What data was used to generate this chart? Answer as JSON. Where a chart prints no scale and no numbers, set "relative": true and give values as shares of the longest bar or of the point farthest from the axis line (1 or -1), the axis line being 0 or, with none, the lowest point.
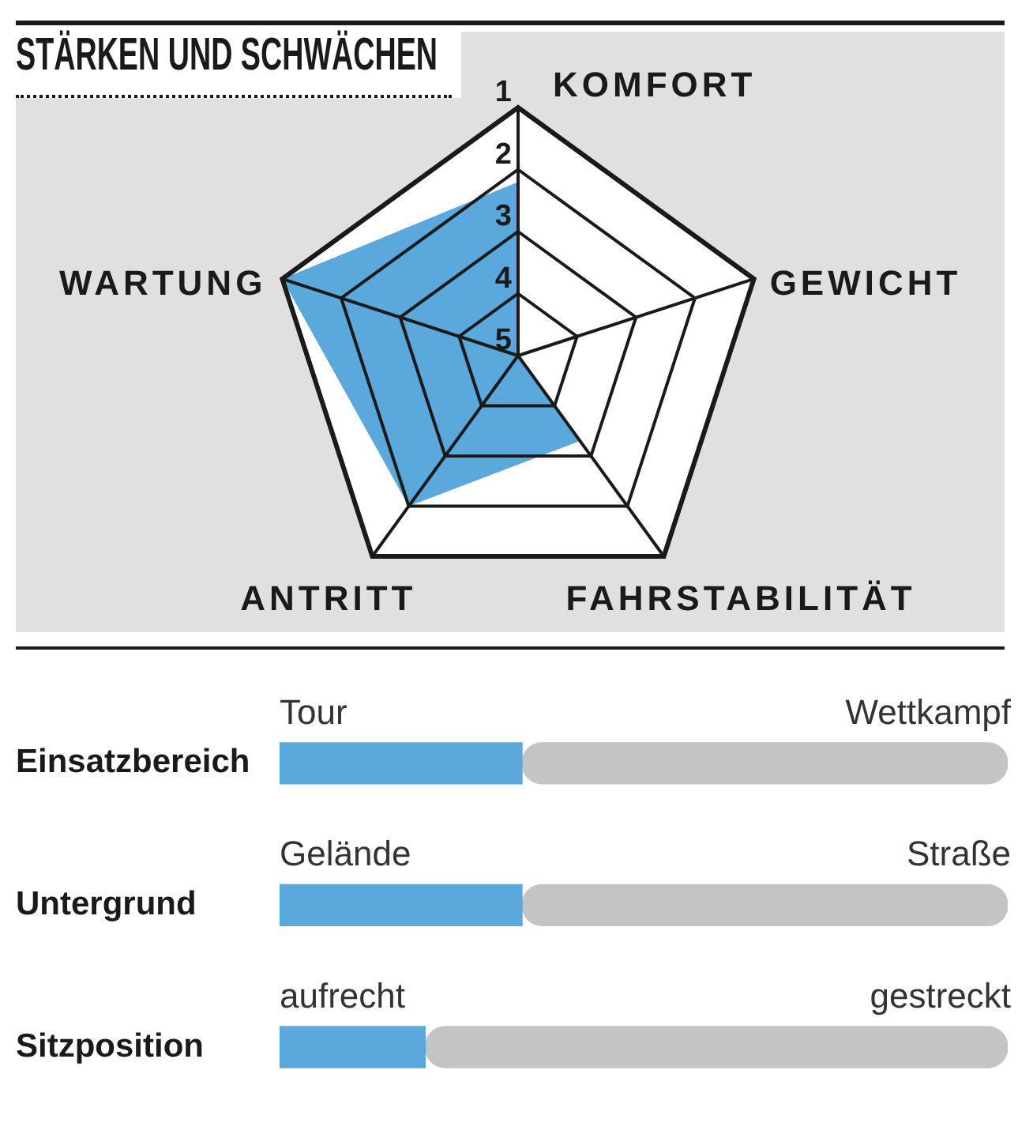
{
  "chart_data": [
    {
      "type": "radar",
      "title": "STÄRKEN UND SCHWÄCHEN",
      "categories": [
        "KOMFORT",
        "GEWICHT",
        "FAHRSTABILITÄT",
        "ANTRITT",
        "WARTUNG"
      ],
      "series": [
        {
          "color": "#5aa8dc",
          "values": [
            2.2,
            5,
            3.3,
            2,
            1
          ]
        }
      ],
      "ylim": [
        5,
        1
      ],
      "yticks": [
        1,
        2,
        3,
        4,
        5
      ],
      "grid": true
    },
    {
      "type": "bar",
      "orientation": "horizontal",
      "stacked": true,
      "relative": true,
      "categories": [
        "Einsatzbereich",
        "Untergrund",
        "Sitzposition"
      ],
      "series": [
        {
          "color": "#5aa8dc",
          "values": [
            0.333,
            0.333,
            0.2
          ]
        },
        {
          "color": "#c4c4c6",
          "values": [
            0.667,
            0.667,
            0.8
          ]
        }
      ],
      "annotations": [
        "Tour",
        "Wettkampf",
        "Gelände",
        "Straße",
        "aufrecht",
        "gestreckt"
      ]
    }
  ]
}
